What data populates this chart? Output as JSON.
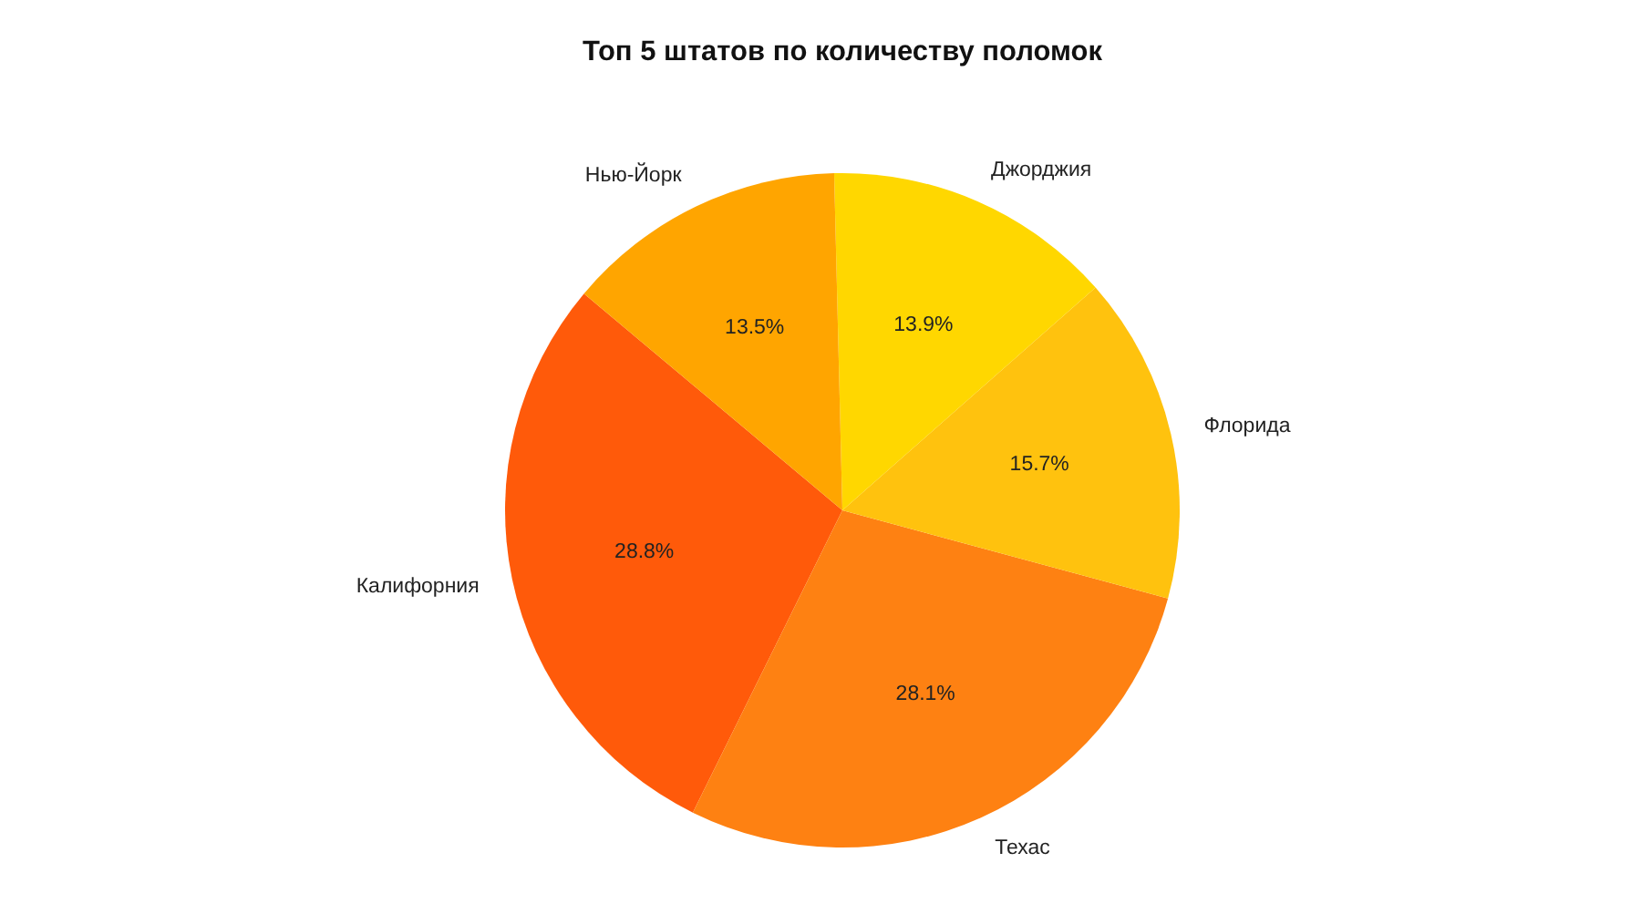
{
  "chart_data": {
    "type": "pie",
    "title": "Топ 5 штатов по количеству поломок",
    "categories": [
      "Калифорния",
      "Техас",
      "Флорида",
      "Джорджия",
      "Нью-Йорк"
    ],
    "values": [
      28.8,
      28.1,
      15.7,
      13.9,
      13.5
    ],
    "colors": [
      "#ff5a0a",
      "#fe8112",
      "#ffc20e",
      "#ffd700",
      "#ffa500"
    ],
    "value_labels": [
      "28.8%",
      "28.1%",
      "15.7%",
      "13.9%",
      "13.5%"
    ]
  }
}
